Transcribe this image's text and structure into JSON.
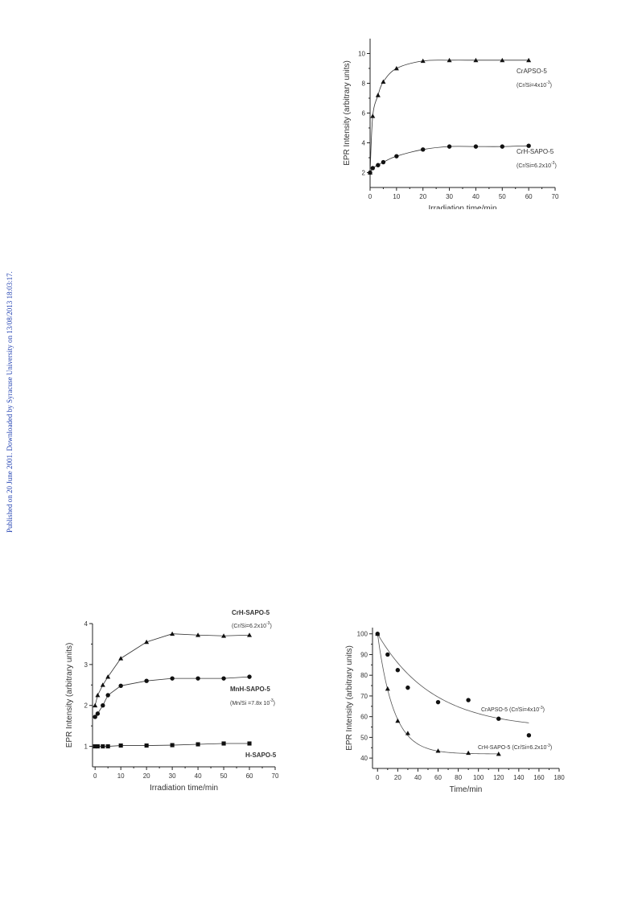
{
  "page": {
    "side_note": "Published on 20 June 2001. Downloaded by Syracuse University on 13/08/2013 18:03:17."
  },
  "chart_data": [
    {
      "type": "scatter",
      "xlabel": "Irradiation time/min",
      "ylabel": "EPR Intensity (arbitrary units)",
      "xlim": [
        0,
        70
      ],
      "ylim": [
        1,
        11
      ],
      "xticks": [
        "0",
        "10",
        "20",
        "30",
        "40",
        "50",
        "60",
        "70"
      ],
      "yticks": [
        "2",
        "4",
        "6",
        "8",
        "10"
      ],
      "series": [
        {
          "name": "CrAPSO-5",
          "marker": "triangle",
          "x": [
            0,
            1,
            3,
            5,
            10,
            20,
            30,
            40,
            50,
            60
          ],
          "y": [
            2.0,
            5.8,
            7.2,
            8.1,
            9.0,
            9.5,
            9.55,
            9.55,
            9.55,
            9.55
          ]
        },
        {
          "name": "CrH-SAPO-5",
          "marker": "circle",
          "x": [
            0,
            1,
            3,
            5,
            10,
            20,
            30,
            40,
            50,
            60
          ],
          "y": [
            2.0,
            2.3,
            2.5,
            2.7,
            3.1,
            3.55,
            3.75,
            3.75,
            3.75,
            3.8
          ]
        }
      ],
      "annotations": [
        {
          "label": "CrAPSO-5",
          "detail_prefix": "(Cr/Si=4x10",
          "detail_exp": "-3",
          "detail_suffix": ")"
        },
        {
          "label": "CrH-SAPO-5",
          "detail_prefix": "(Cr/Si=6.2x10",
          "detail_exp": "-3",
          "detail_suffix": ")"
        }
      ]
    },
    {
      "type": "line",
      "xlabel": "Irradiation time/min",
      "ylabel": "EPR Intensity (arbitrary units)",
      "xlim": [
        -1,
        70
      ],
      "ylim": [
        0.5,
        4
      ],
      "xticks": [
        "0",
        "10",
        "20",
        "30",
        "40",
        "50",
        "60",
        "70"
      ],
      "yticks": [
        "1",
        "2",
        "3",
        "4"
      ],
      "series": [
        {
          "name": "CrH-SAPO-5",
          "marker": "triangle",
          "x": [
            0,
            1,
            3,
            5,
            10,
            20,
            30,
            40,
            50,
            60
          ],
          "y": [
            2.0,
            2.25,
            2.5,
            2.7,
            3.15,
            3.55,
            3.75,
            3.72,
            3.7,
            3.72
          ]
        },
        {
          "name": "MnH-SAPO-5",
          "marker": "circle",
          "x": [
            0,
            1,
            3,
            5,
            10,
            20,
            30,
            40,
            50,
            60
          ],
          "y": [
            1.72,
            1.8,
            2.0,
            2.25,
            2.48,
            2.6,
            2.66,
            2.66,
            2.66,
            2.7
          ]
        },
        {
          "name": "H-SAPO-5",
          "marker": "square",
          "x": [
            0,
            1,
            3,
            5,
            10,
            20,
            30,
            40,
            50,
            60
          ],
          "y": [
            1.0,
            1.0,
            1.0,
            1.0,
            1.02,
            1.02,
            1.03,
            1.05,
            1.07,
            1.07
          ]
        }
      ],
      "annotations": [
        {
          "label": "CrH-SAPO-5",
          "detail_prefix": "(Cr/Si=6.2x10",
          "detail_exp": "-3",
          "detail_suffix": ")"
        },
        {
          "label": "MnH-SAPO-5",
          "detail_prefix": "(Mn/Si =7.8x 10",
          "detail_exp": "-3",
          "detail_suffix": ")"
        },
        {
          "label": "H-SAPO-5"
        }
      ]
    },
    {
      "type": "scatter",
      "xlabel": "Time/min",
      "ylabel": "EPR Intensity (arbitrary units)",
      "xlim": [
        -5,
        180
      ],
      "ylim": [
        35,
        103
      ],
      "xticks": [
        "0",
        "20",
        "40",
        "60",
        "80",
        "100",
        "120",
        "140",
        "160",
        "180"
      ],
      "yticks": [
        "40",
        "50",
        "60",
        "70",
        "80",
        "90",
        "100"
      ],
      "series": [
        {
          "name": "CrAPSO-5",
          "marker": "circle",
          "x": [
            0,
            10,
            20,
            30,
            60,
            90,
            120,
            150
          ],
          "y": [
            100,
            90,
            82.5,
            74,
            67,
            68,
            59,
            51
          ]
        },
        {
          "name": "CrH-SAPO-5",
          "marker": "triangle",
          "x": [
            0,
            10,
            20,
            30,
            60,
            90,
            120
          ],
          "y": [
            100,
            73.5,
            58,
            52,
            43.5,
            42.5,
            42
          ]
        }
      ],
      "fits": [
        {
          "series": "CrAPSO-5",
          "a": 46,
          "b": 54,
          "tau": 55,
          "x_end": 150
        },
        {
          "series": "CrH-SAPO-5",
          "a": 58,
          "b": 42,
          "tau": 16,
          "x_end": 120
        }
      ],
      "annotations": [
        {
          "label": "CrAPSO-5",
          "detail_prefix": " (Cr/Si=4x10",
          "detail_exp": "-3",
          "detail_suffix": ")"
        },
        {
          "label": "CrH-SAPO-5",
          "detail_prefix": " (Cr/Si=6.2x10",
          "detail_exp": "-3",
          "detail_suffix": ")"
        }
      ]
    }
  ]
}
